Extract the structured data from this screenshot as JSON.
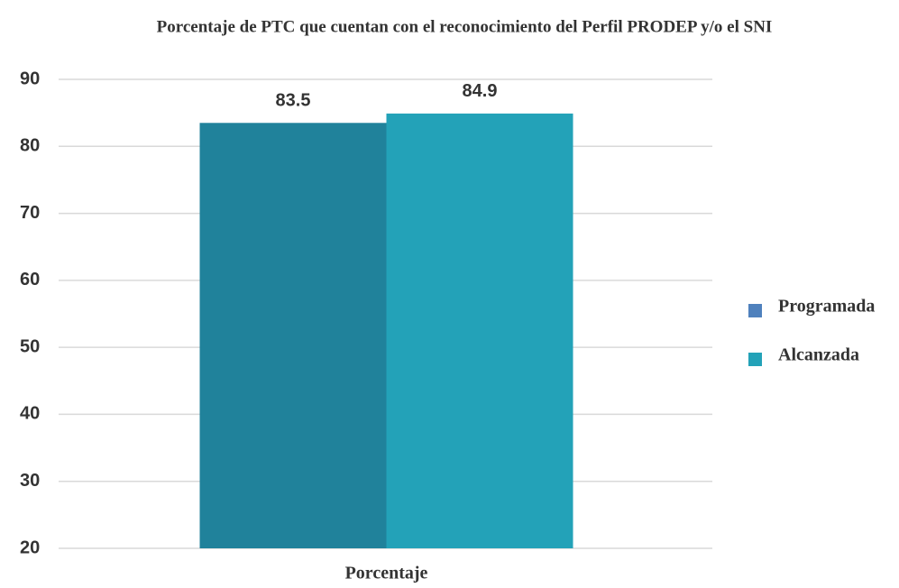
{
  "chart_data": {
    "type": "bar",
    "title": "Porcentaje de PTC que cuentan con el reconocimiento del Perfil PRODEP y/o el SNI",
    "categories": [
      "Porcentaje"
    ],
    "series": [
      {
        "name": "Programada",
        "color": "#20829b",
        "legend_color": "#4f81bd",
        "values": [
          83.5
        ]
      },
      {
        "name": "Alcanzada",
        "color": "#23a2b8",
        "legend_color": "#23a2b8",
        "values": [
          84.9
        ]
      }
    ],
    "ylim": [
      20,
      90
    ],
    "yticks": [
      20,
      30,
      40,
      50,
      60,
      70,
      80,
      90
    ],
    "grid": true,
    "legend": "right"
  }
}
